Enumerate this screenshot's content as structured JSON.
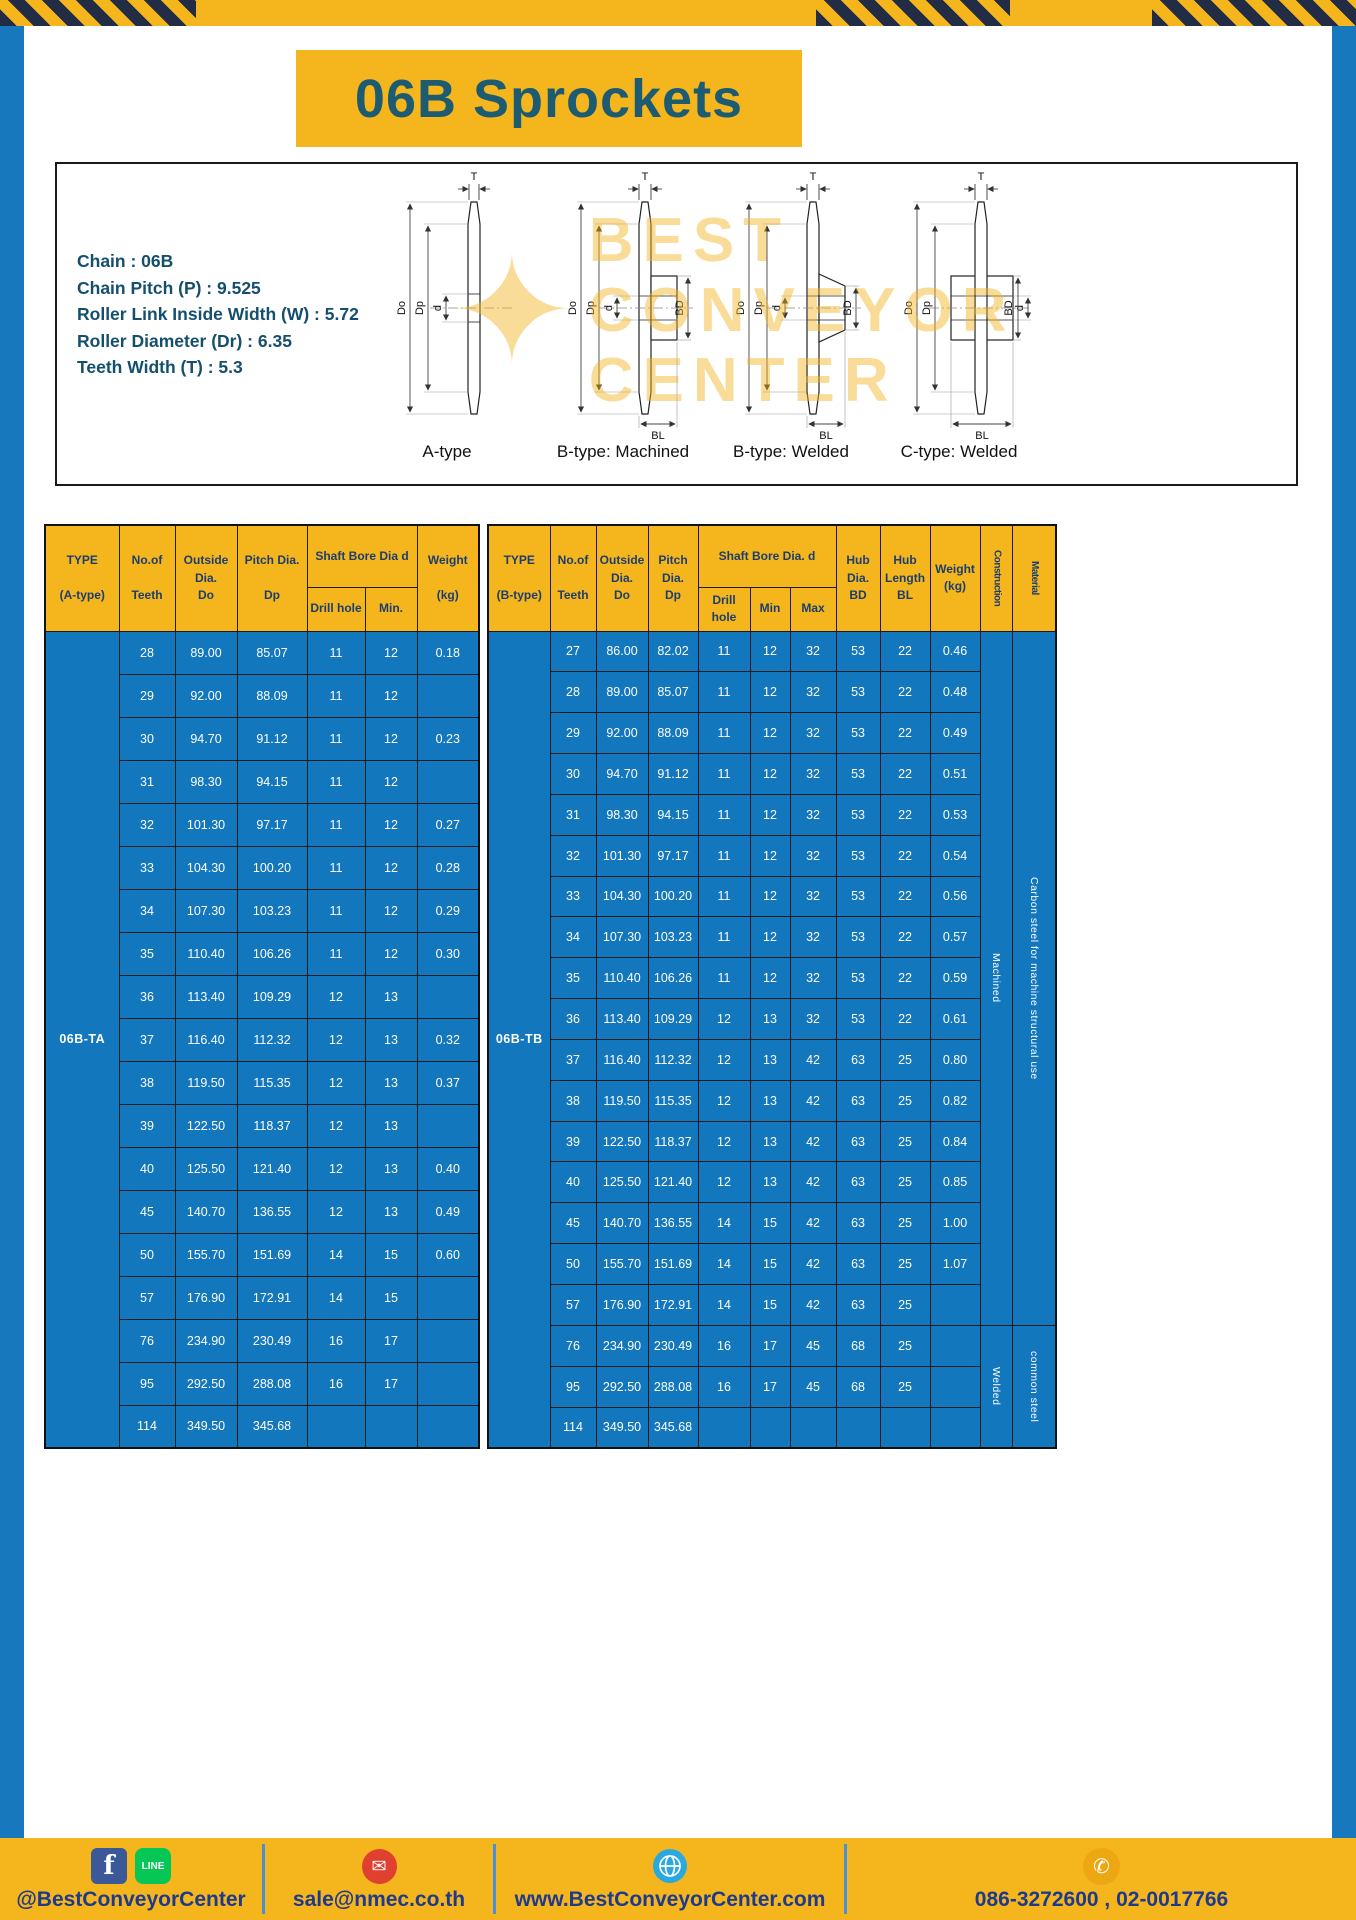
{
  "title": "06B Sprockets",
  "specs": {
    "lines": [
      "Chain : 06B",
      "Chain Pitch (P) : 9.525",
      "Roller Link Inside Width (W) : 5.72",
      "Roller Diameter (Dr) : 6.35",
      "Teeth Width (T) : 5.3"
    ]
  },
  "diagrams": {
    "captions": [
      "A-type",
      "B-type: Machined",
      "B-type: Welded",
      "C-type: Welded"
    ],
    "labels": {
      "t": "T",
      "outside": "Do",
      "pitch": "Dp",
      "bore": "d",
      "hub_dia": "BD",
      "hub_len": "BL"
    }
  },
  "watermark": {
    "line1": "BEST",
    "line2": "CONVEYOR",
    "line3": "CENTER"
  },
  "table_a": {
    "type_value": "06B-TA",
    "headers": {
      "type": "TYPE\n\n(A-type)",
      "teeth": "No.of\n\nTeeth",
      "outside": "Outside\nDia.\nDo",
      "pitch": "Pitch Dia.\n\nDp",
      "shaft_group": "Shaft Bore Dia d",
      "drill": "Drill hole",
      "min": "Min.",
      "weight": "Weight\n\n(kg)"
    },
    "rows": [
      [
        "28",
        "89.00",
        "85.07",
        "11",
        "12",
        "0.18"
      ],
      [
        "29",
        "92.00",
        "88.09",
        "11",
        "12",
        ""
      ],
      [
        "30",
        "94.70",
        "91.12",
        "11",
        "12",
        "0.23"
      ],
      [
        "31",
        "98.30",
        "94.15",
        "11",
        "12",
        ""
      ],
      [
        "32",
        "101.30",
        "97.17",
        "11",
        "12",
        "0.27"
      ],
      [
        "33",
        "104.30",
        "100.20",
        "11",
        "12",
        "0.28"
      ],
      [
        "34",
        "107.30",
        "103.23",
        "11",
        "12",
        "0.29"
      ],
      [
        "35",
        "110.40",
        "106.26",
        "11",
        "12",
        "0.30"
      ],
      [
        "36",
        "113.40",
        "109.29",
        "12",
        "13",
        ""
      ],
      [
        "37",
        "116.40",
        "112.32",
        "12",
        "13",
        "0.32"
      ],
      [
        "38",
        "119.50",
        "115.35",
        "12",
        "13",
        "0.37"
      ],
      [
        "39",
        "122.50",
        "118.37",
        "12",
        "13",
        ""
      ],
      [
        "40",
        "125.50",
        "121.40",
        "12",
        "13",
        "0.40"
      ],
      [
        "45",
        "140.70",
        "136.55",
        "12",
        "13",
        "0.49"
      ],
      [
        "50",
        "155.70",
        "151.69",
        "14",
        "15",
        "0.60"
      ],
      [
        "57",
        "176.90",
        "172.91",
        "14",
        "15",
        ""
      ],
      [
        "76",
        "234.90",
        "230.49",
        "16",
        "17",
        ""
      ],
      [
        "95",
        "292.50",
        "288.08",
        "16",
        "17",
        ""
      ],
      [
        "114",
        "349.50",
        "345.68",
        "",
        "",
        ""
      ]
    ]
  },
  "table_b": {
    "type_value": "06B-TB",
    "headers": {
      "type": "TYPE\n\n(B-type)",
      "teeth": "No.of\n\nTeeth",
      "outside": "Outside\nDia.\nDo",
      "pitch": "Pitch\nDia.\nDp",
      "shaft_group": "Shaft Bore Dia. d",
      "drill": "Drill hole",
      "min": "Min",
      "max": "Max",
      "hub_dia": "Hub\nDia.\nBD",
      "hub_len": "Hub\nLength\nBL",
      "weight": "Weight\n(kg)",
      "construction": "Construction",
      "material": "Material"
    },
    "rows": [
      [
        "27",
        "86.00",
        "82.02",
        "11",
        "12",
        "32",
        "53",
        "22",
        "0.46"
      ],
      [
        "28",
        "89.00",
        "85.07",
        "11",
        "12",
        "32",
        "53",
        "22",
        "0.48"
      ],
      [
        "29",
        "92.00",
        "88.09",
        "11",
        "12",
        "32",
        "53",
        "22",
        "0.49"
      ],
      [
        "30",
        "94.70",
        "91.12",
        "11",
        "12",
        "32",
        "53",
        "22",
        "0.51"
      ],
      [
        "31",
        "98.30",
        "94.15",
        "11",
        "12",
        "32",
        "53",
        "22",
        "0.53"
      ],
      [
        "32",
        "101.30",
        "97.17",
        "11",
        "12",
        "32",
        "53",
        "22",
        "0.54"
      ],
      [
        "33",
        "104.30",
        "100.20",
        "11",
        "12",
        "32",
        "53",
        "22",
        "0.56"
      ],
      [
        "34",
        "107.30",
        "103.23",
        "11",
        "12",
        "32",
        "53",
        "22",
        "0.57"
      ],
      [
        "35",
        "110.40",
        "106.26",
        "11",
        "12",
        "32",
        "53",
        "22",
        "0.59"
      ],
      [
        "36",
        "113.40",
        "109.29",
        "12",
        "13",
        "32",
        "53",
        "22",
        "0.61"
      ],
      [
        "37",
        "116.40",
        "112.32",
        "12",
        "13",
        "42",
        "63",
        "25",
        "0.80"
      ],
      [
        "38",
        "119.50",
        "115.35",
        "12",
        "13",
        "42",
        "63",
        "25",
        "0.82"
      ],
      [
        "39",
        "122.50",
        "118.37",
        "12",
        "13",
        "42",
        "63",
        "25",
        "0.84"
      ],
      [
        "40",
        "125.50",
        "121.40",
        "12",
        "13",
        "42",
        "63",
        "25",
        "0.85"
      ],
      [
        "45",
        "140.70",
        "136.55",
        "14",
        "15",
        "42",
        "63",
        "25",
        "1.00"
      ],
      [
        "50",
        "155.70",
        "151.69",
        "14",
        "15",
        "42",
        "63",
        "25",
        "1.07"
      ],
      [
        "57",
        "176.90",
        "172.91",
        "14",
        "15",
        "42",
        "63",
        "25",
        ""
      ],
      [
        "76",
        "234.90",
        "230.49",
        "16",
        "17",
        "45",
        "68",
        "25",
        ""
      ],
      [
        "95",
        "292.50",
        "288.08",
        "16",
        "17",
        "45",
        "68",
        "25",
        ""
      ],
      [
        "114",
        "349.50",
        "345.68",
        "",
        "",
        "",
        "",
        "",
        ""
      ]
    ],
    "construction": [
      {
        "label": "Machined",
        "span": 17
      },
      {
        "label": "Welded",
        "span": 3
      }
    ],
    "material": [
      {
        "label": "Carbon steel for machine structural use",
        "span": 17
      },
      {
        "label": "common steel",
        "span": 3
      }
    ]
  },
  "footer": {
    "social": "@BestConveyorCenter",
    "email": "sale@nmec.co.th",
    "website": "www.BestConveyorCenter.com",
    "phone": "086-3272600 , 02-0017766",
    "icons": {
      "facebook": "f",
      "line": "LINE",
      "mail": "✉",
      "phone_glyph": "✆"
    }
  },
  "colors": {
    "frame_blue": "#1878be",
    "accent_yellow": "#f5b51d",
    "table_blue": "#1377be",
    "header_text": "#1c3e6e",
    "title_text": "#1d5b72",
    "footer_text": "#1d3a8c"
  }
}
